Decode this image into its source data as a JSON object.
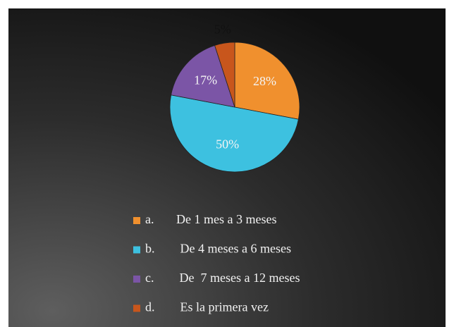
{
  "chart_data": {
    "type": "pie",
    "categories": [
      "a.       De 1 mes a 3 meses",
      "b.        De 4 meses a 6 meses",
      "c.        De  7 meses a 12 meses",
      "d.        Es la primera vez"
    ],
    "values": [
      28,
      50,
      17,
      5
    ],
    "value_labels": [
      "28%",
      "50%",
      "17%",
      "5%"
    ],
    "colors": [
      "#f0902e",
      "#3dc1e0",
      "#7b55a6",
      "#c8561c"
    ]
  }
}
